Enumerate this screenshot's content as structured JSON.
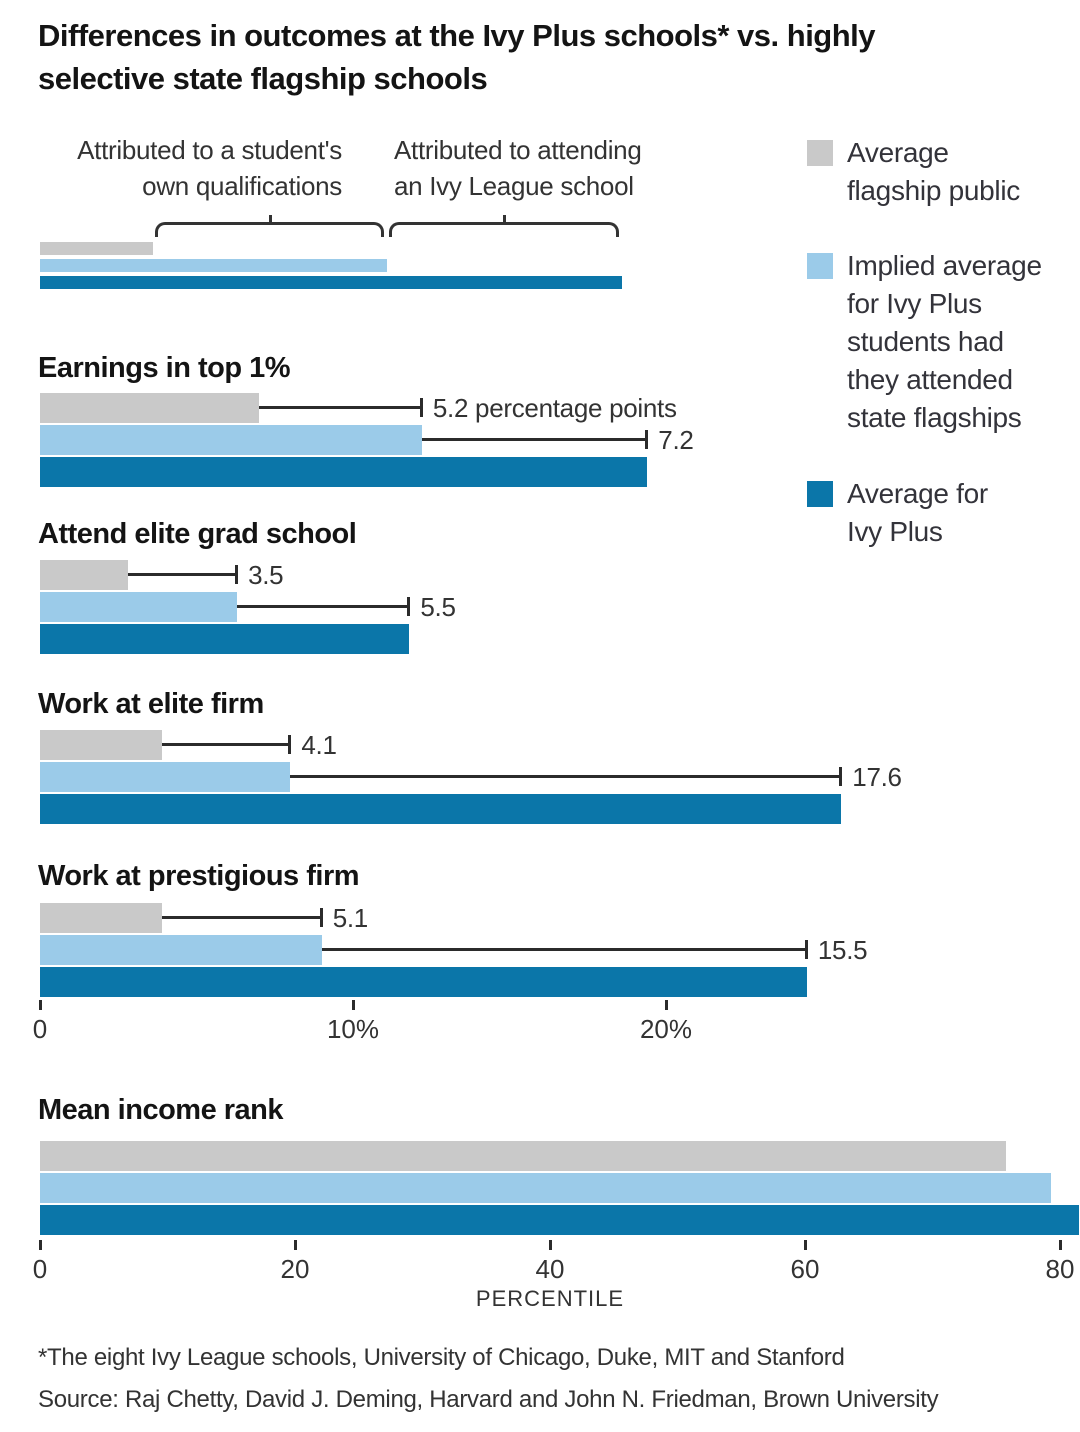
{
  "title": "Differences in outcomes at the Ivy Plus schools* vs. highly\nselective state flagship schools",
  "legend": {
    "items": [
      {
        "id": "flagship",
        "label": "Average\nflagship public",
        "color": "#c9c9c9"
      },
      {
        "id": "implied",
        "label": "Implied average\nfor Ivy Plus\nstudents had\nthey attended\nstate flagships",
        "color": "#9bcbe9"
      },
      {
        "id": "ivy",
        "label": "Average for\nIvy Plus",
        "color": "#0b76a9"
      }
    ]
  },
  "chart_data": {
    "type": "bar",
    "orientation": "horizontal",
    "series_order": [
      "Average flagship public",
      "Implied average for Ivy Plus students had they attended state flagships",
      "Average for Ivy Plus"
    ],
    "explainer": {
      "schematic_note": "unlabeled example bars illustrating how to read the chart",
      "values": [
        3.6,
        11.1,
        18.6
      ],
      "brackets": [
        {
          "label": "Attributed to a student's\nown qualifications",
          "from": 3.6,
          "to": 11.1
        },
        {
          "label": "Attributed to attending\nan Ivy League school",
          "from": 11.1,
          "to": 18.6
        }
      ]
    },
    "groups": [
      {
        "category": "Earnings in top 1%",
        "values": [
          7.0,
          12.2,
          19.4
        ],
        "annotations": [
          "5.2 percentage points",
          "7.2"
        ]
      },
      {
        "category": "Attend elite grad school",
        "values": [
          2.8,
          6.3,
          11.8
        ],
        "annotations": [
          "3.5",
          "5.5"
        ]
      },
      {
        "category": "Work at elite firm",
        "values": [
          3.9,
          8.0,
          25.6
        ],
        "annotations": [
          "4.1",
          "17.6"
        ]
      },
      {
        "category": "Work at prestigious firm",
        "values": [
          3.9,
          9.0,
          24.5
        ],
        "annotations": [
          "5.1",
          "15.5"
        ]
      }
    ],
    "percent_axis": {
      "unit": "percent",
      "range": [
        0,
        26
      ],
      "tick_values": [
        0,
        10,
        20
      ],
      "tick_labels": [
        "0",
        "10%",
        "20%"
      ]
    },
    "income": {
      "category": "Mean income rank",
      "values": [
        75.8,
        79.3,
        81.5
      ],
      "axis": {
        "unit": "percentile",
        "range": [
          0,
          82
        ],
        "tick_values": [
          0,
          20,
          40,
          60,
          80
        ],
        "tick_labels": [
          "0",
          "20",
          "40",
          "60",
          "80"
        ],
        "label": "PERCENTILE"
      }
    }
  },
  "footnote": "*The eight Ivy League schools, University of Chicago, Duke, MIT and Stanford",
  "source": "Source: Raj Chetty, David J. Deming, Harvard and John N. Friedman, Brown University"
}
